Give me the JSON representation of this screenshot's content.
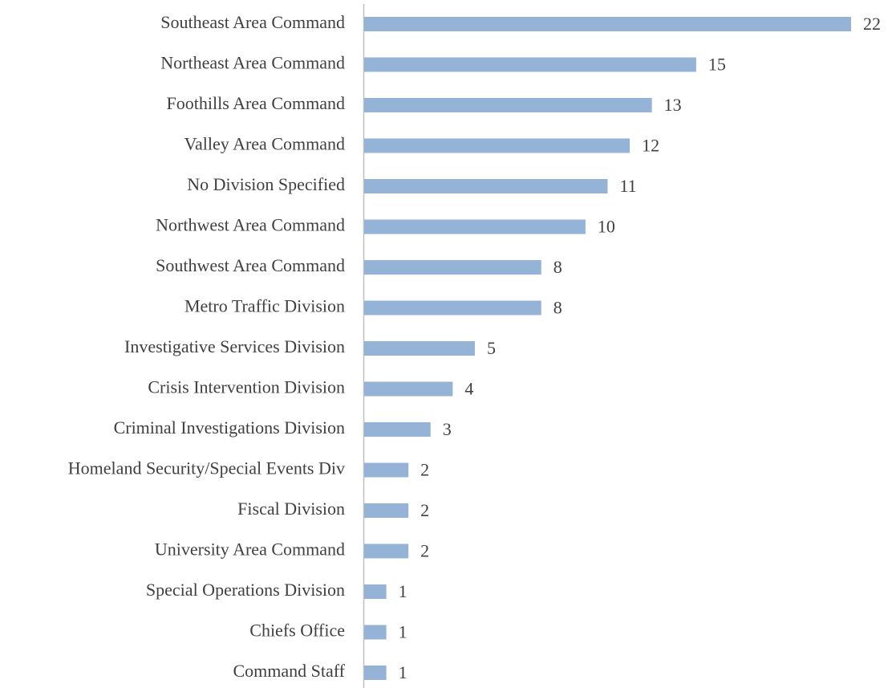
{
  "chart_data": {
    "type": "bar",
    "orientation": "horizontal",
    "categories": [
      "Southeast Area Command",
      "Northeast Area Command",
      "Foothills Area Command",
      "Valley Area Command",
      "No Division Specified",
      "Northwest Area Command",
      "Southwest Area Command",
      "Metro Traffic Division",
      "Investigative Services Division",
      "Crisis Intervention Division",
      "Criminal Investigations Division",
      "Homeland Security/Special Events Div",
      "Fiscal Division",
      "University Area Command",
      "Special Operations Division",
      "Chiefs Office",
      "Command Staff"
    ],
    "values": [
      22,
      15,
      13,
      12,
      11,
      10,
      8,
      8,
      5,
      4,
      3,
      2,
      2,
      2,
      1,
      1,
      1
    ],
    "color": "#95b3d7"
  }
}
